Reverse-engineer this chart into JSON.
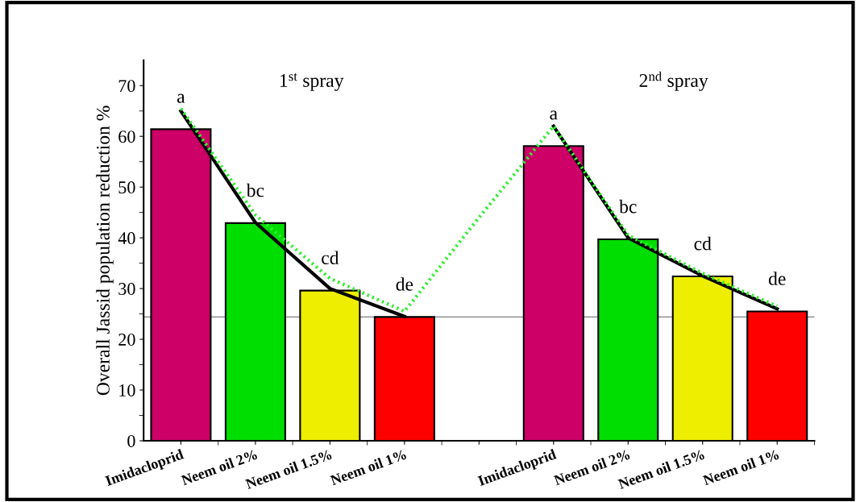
{
  "chart_data": {
    "type": "bar",
    "ylabel": "Overall Jassid population reduction %",
    "categories": [
      "Imidacloprid",
      "Neem oil 2%",
      "Neem oil 1.5%",
      "Neem oil 1%",
      null,
      "Imidacloprid",
      "Neem oil 2%",
      "Neem oil 1.5%",
      "Neem oil 1%"
    ],
    "series": [
      {
        "values": [
          61.4,
          42.9,
          29.6,
          24.4,
          null,
          58.1,
          39.7,
          32.4,
          25.5
        ],
        "colors": [
          "#cc0066",
          "#00dd00",
          "#eeee00",
          "#ff0000",
          null,
          "#cc0066",
          "#00dd00",
          "#eeee00",
          "#ff0000"
        ],
        "value_labels": [
          "a",
          "bc",
          "cd",
          "de",
          null,
          "a",
          "bc",
          "cd",
          "de"
        ]
      },
      {
        "type": "line",
        "color": "#000000",
        "line_style": "solid",
        "values": [
          65,
          43,
          30,
          24.5,
          null,
          62,
          40,
          32.5,
          26
        ]
      },
      {
        "type": "line",
        "color": "#33ee33",
        "line_style": "dotted",
        "values": [
          65.5,
          44.5,
          32,
          25.5,
          44,
          62,
          40.5,
          33,
          26.5
        ]
      }
    ],
    "ylim": [
      0,
      75
    ],
    "yticks": [
      0,
      10,
      20,
      30,
      40,
      50,
      60,
      70
    ],
    "ref_lines": [
      {
        "axis": "y",
        "value": 24.4,
        "color": "#808080",
        "line_style": "solid"
      }
    ],
    "annotations": [
      "1$^{st}$ spray",
      "2$^{nd}$ spray"
    ],
    "grid": false,
    "legend": false
  }
}
